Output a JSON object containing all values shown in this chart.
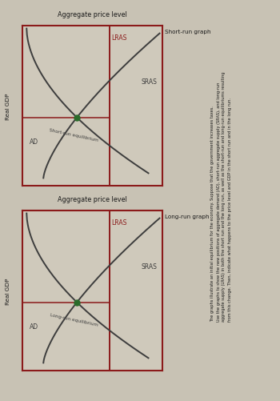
{
  "bg_color": "#c8c2b4",
  "plot_bg_color": "#cfc9bb",
  "lras_color": "#8b1a1a",
  "curve_color": "#3d3d3d",
  "eq_color": "#2a6b2a",
  "text_color": "#1a1a1a",
  "border_color": "#8b1a1a",
  "title_top": "Aggregate price level",
  "graph1_label": "Short-run graph",
  "graph2_label": "Long-run graph",
  "lras_label": "LRAS",
  "sras_label": "SRAS",
  "ad_label": "AD",
  "eq1_label": "Short-run equilibrium",
  "eq2_label": "Long-run equilibrium",
  "real_gdp_label": "Real GDP",
  "description": "The graphs illustrate an initial equilibrium for the economy. Suppose that the government increases taxes.\nUse the graphs to show the new positions of aggregate demand (AD), short-run aggregate supply (SRAS), and long-run\naggregate supply (LRAS) in both the short run and the long run, as well as the short-run and long-run equilibriums resulting\nfrom this change. Then, indicate what happens to the price level and GDP in the short run and in the long run."
}
